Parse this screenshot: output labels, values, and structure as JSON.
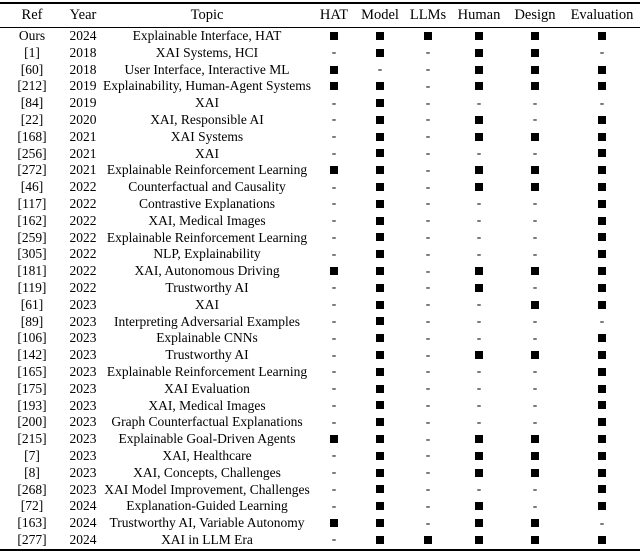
{
  "table": {
    "headers": [
      "Ref",
      "Year",
      "Topic",
      "HAT",
      "Model",
      "LLMs",
      "Human",
      "Design",
      "Evaluation"
    ],
    "mark_columns": [
      "HAT",
      "Model",
      "LLMs",
      "Human",
      "Design",
      "Evaluation"
    ],
    "symbols": {
      "filled": "filled-square",
      "empty": "-"
    },
    "colors": {
      "text": "#000000",
      "background": "#ffffff",
      "marker": "#000000",
      "rule": "#000000"
    },
    "rows": [
      {
        "ref": "Ours",
        "year": "2024",
        "topic": "Explainable Interface, HAT",
        "marks": [
          1,
          1,
          1,
          1,
          1,
          1
        ]
      },
      {
        "ref": "[1]",
        "year": "2018",
        "topic": "XAI Systems, HCI",
        "marks": [
          0,
          1,
          0,
          1,
          1,
          0
        ]
      },
      {
        "ref": "[60]",
        "year": "2018",
        "topic": "User Interface, Interactive ML",
        "marks": [
          1,
          0,
          0,
          1,
          1,
          1
        ]
      },
      {
        "ref": "[212]",
        "year": "2019",
        "topic": "Explainability, Human-Agent Systems",
        "marks": [
          1,
          1,
          0,
          1,
          1,
          1
        ]
      },
      {
        "ref": "[84]",
        "year": "2019",
        "topic": "XAI",
        "marks": [
          0,
          1,
          0,
          0,
          0,
          0
        ]
      },
      {
        "ref": "[22]",
        "year": "2020",
        "topic": "XAI, Responsible AI",
        "marks": [
          0,
          1,
          0,
          1,
          0,
          1
        ]
      },
      {
        "ref": "[168]",
        "year": "2021",
        "topic": "XAI Systems",
        "marks": [
          0,
          1,
          0,
          1,
          1,
          1
        ]
      },
      {
        "ref": "[256]",
        "year": "2021",
        "topic": "XAI",
        "marks": [
          0,
          1,
          0,
          0,
          0,
          1
        ]
      },
      {
        "ref": "[272]",
        "year": "2021",
        "topic": "Explainable Reinforcement Learning",
        "marks": [
          1,
          1,
          0,
          1,
          1,
          1
        ]
      },
      {
        "ref": "[46]",
        "year": "2022",
        "topic": "Counterfactual and Causality",
        "marks": [
          0,
          1,
          0,
          1,
          1,
          1
        ]
      },
      {
        "ref": "[117]",
        "year": "2022",
        "topic": "Contrastive Explanations",
        "marks": [
          0,
          1,
          0,
          0,
          0,
          1
        ]
      },
      {
        "ref": "[162]",
        "year": "2022",
        "topic": "XAI, Medical Images",
        "marks": [
          0,
          1,
          0,
          0,
          0,
          1
        ]
      },
      {
        "ref": "[259]",
        "year": "2022",
        "topic": "Explainable Reinforcement Learning",
        "marks": [
          0,
          1,
          0,
          0,
          0,
          1
        ]
      },
      {
        "ref": "[305]",
        "year": "2022",
        "topic": "NLP, Explainability",
        "marks": [
          0,
          1,
          0,
          0,
          0,
          1
        ]
      },
      {
        "ref": "[181]",
        "year": "2022",
        "topic": "XAI, Autonomous Driving",
        "marks": [
          1,
          1,
          0,
          1,
          1,
          1
        ]
      },
      {
        "ref": "[119]",
        "year": "2022",
        "topic": "Trustworthy AI",
        "marks": [
          0,
          1,
          0,
          1,
          0,
          1
        ]
      },
      {
        "ref": "[61]",
        "year": "2023",
        "topic": "XAI",
        "marks": [
          0,
          1,
          0,
          0,
          1,
          1
        ]
      },
      {
        "ref": "[89]",
        "year": "2023",
        "topic": "Interpreting Adversarial Examples",
        "marks": [
          0,
          1,
          0,
          0,
          0,
          0
        ]
      },
      {
        "ref": "[106]",
        "year": "2023",
        "topic": "Explainable CNNs",
        "marks": [
          0,
          1,
          0,
          0,
          0,
          1
        ]
      },
      {
        "ref": "[142]",
        "year": "2023",
        "topic": "Trustworthy AI",
        "marks": [
          0,
          1,
          0,
          1,
          1,
          1
        ]
      },
      {
        "ref": "[165]",
        "year": "2023",
        "topic": "Explainable Reinforcement Learning",
        "marks": [
          0,
          1,
          0,
          0,
          0,
          1
        ]
      },
      {
        "ref": "[175]",
        "year": "2023",
        "topic": "XAI Evaluation",
        "marks": [
          0,
          1,
          0,
          0,
          0,
          1
        ]
      },
      {
        "ref": "[193]",
        "year": "2023",
        "topic": "XAI, Medical Images",
        "marks": [
          0,
          1,
          0,
          0,
          0,
          1
        ]
      },
      {
        "ref": "[200]",
        "year": "2023",
        "topic": "Graph Counterfactual Explanations",
        "marks": [
          0,
          1,
          0,
          0,
          0,
          1
        ]
      },
      {
        "ref": "[215]",
        "year": "2023",
        "topic": "Explainable Goal-Driven Agents",
        "marks": [
          1,
          1,
          0,
          1,
          1,
          1
        ]
      },
      {
        "ref": "[7]",
        "year": "2023",
        "topic": "XAI, Healthcare",
        "marks": [
          0,
          1,
          0,
          1,
          1,
          1
        ]
      },
      {
        "ref": "[8]",
        "year": "2023",
        "topic": "XAI, Concepts, Challenges",
        "marks": [
          0,
          1,
          0,
          1,
          1,
          1
        ]
      },
      {
        "ref": "[268]",
        "year": "2023",
        "topic": "XAI Model Improvement, Challenges",
        "marks": [
          0,
          1,
          0,
          0,
          0,
          1
        ]
      },
      {
        "ref": "[72]",
        "year": "2024",
        "topic": "Explanation-Guided Learning",
        "marks": [
          0,
          1,
          0,
          1,
          0,
          1
        ]
      },
      {
        "ref": "[163]",
        "year": "2024",
        "topic": "Trustworthy AI, Variable Autonomy",
        "marks": [
          1,
          1,
          0,
          1,
          1,
          0
        ]
      },
      {
        "ref": "[277]",
        "year": "2024",
        "topic": "XAI in LLM Era",
        "marks": [
          0,
          1,
          1,
          1,
          1,
          1
        ]
      }
    ]
  }
}
